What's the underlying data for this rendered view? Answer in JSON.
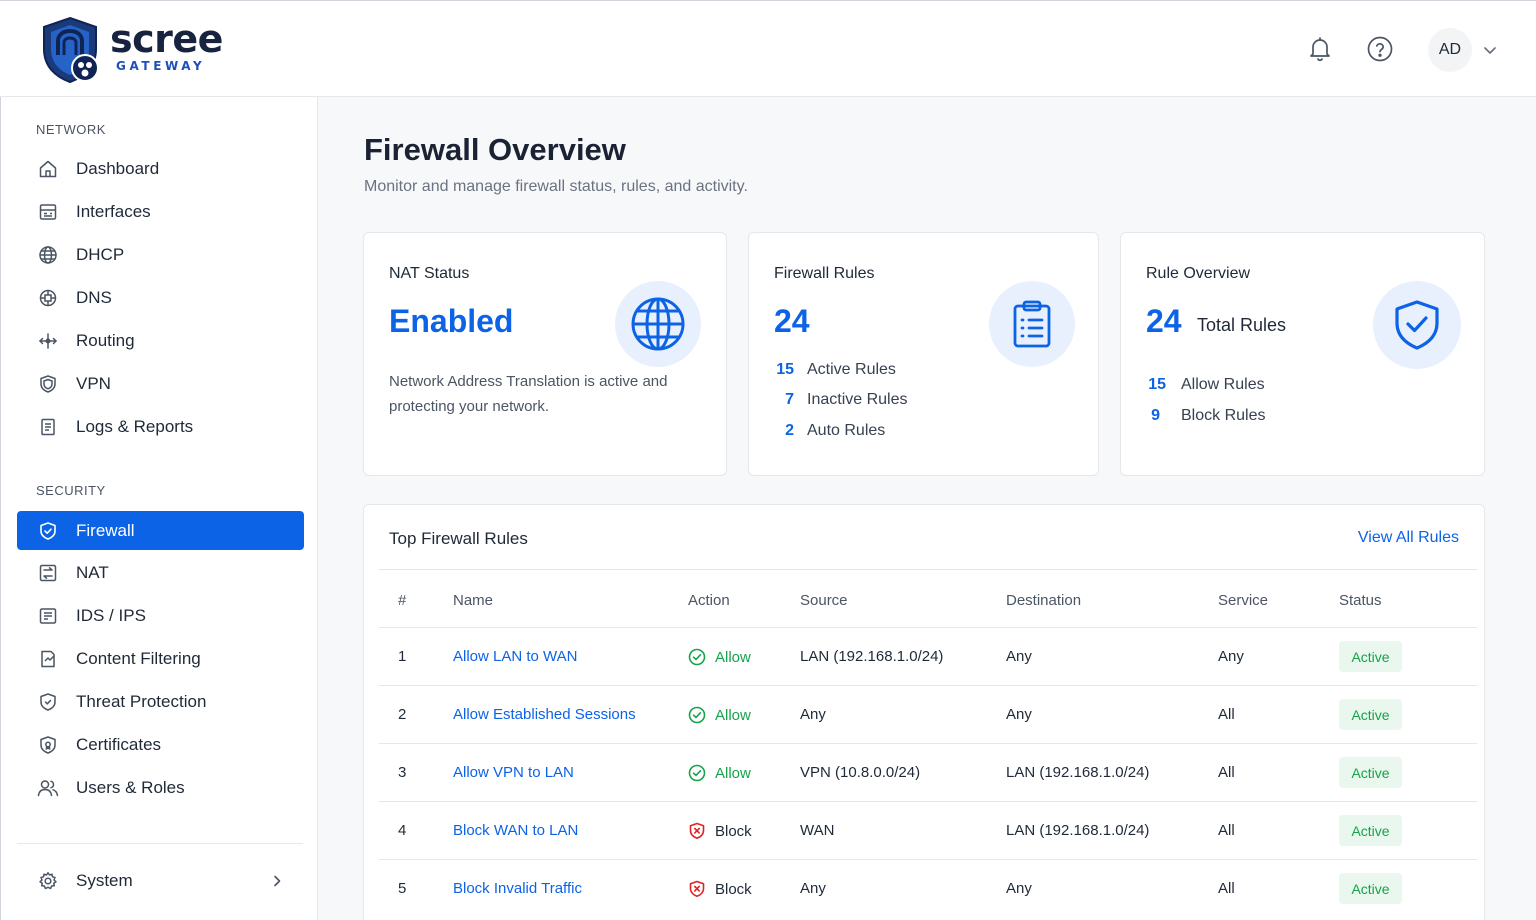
{
  "brand": {
    "name": "scree",
    "subtitle": "GATEWAY"
  },
  "header": {
    "avatar_initials": "AD",
    "icons": [
      "bell-icon",
      "help-icon",
      "chevron-down-icon"
    ]
  },
  "sidebar": {
    "network_heading": "NETWORK",
    "network_items": [
      {
        "label": "Dashboard",
        "icon": "home-icon"
      },
      {
        "label": "Interfaces",
        "icon": "interfaces-icon"
      },
      {
        "label": "DHCP",
        "icon": "globe-icon"
      },
      {
        "label": "DNS",
        "icon": "dns-icon"
      },
      {
        "label": "Routing",
        "icon": "routing-icon"
      },
      {
        "label": "VPN",
        "icon": "shield-icon"
      },
      {
        "label": "Logs & Reports",
        "icon": "document-icon"
      }
    ],
    "security_heading": "SECURITY",
    "security_items": [
      {
        "label": "Firewall",
        "icon": "shield-check-icon",
        "active": true
      },
      {
        "label": "NAT",
        "icon": "nat-icon"
      },
      {
        "label": "IDS / IPS",
        "icon": "ids-icon"
      },
      {
        "label": "Content Filtering",
        "icon": "filter-icon"
      },
      {
        "label": "Threat Protection",
        "icon": "shield-icon"
      },
      {
        "label": "Certificates",
        "icon": "certificate-icon"
      },
      {
        "label": "Users & Roles",
        "icon": "users-icon"
      }
    ],
    "system_label": "System"
  },
  "page": {
    "title": "Firewall Overview",
    "subtitle": "Monitor and manage firewall status, rules, and activity."
  },
  "cards": {
    "nat": {
      "title": "NAT Status",
      "value": "Enabled",
      "description": "Network Address Translation is active and protecting your network."
    },
    "rules": {
      "title": "Firewall Rules",
      "value": "24",
      "stats": [
        {
          "num": "15",
          "label": "Active Rules"
        },
        {
          "num": "7",
          "label": "Inactive Rules"
        },
        {
          "num": "2",
          "label": "Auto Rules"
        }
      ]
    },
    "overview": {
      "title": "Rule Overview",
      "value": "24",
      "value_label": "Total Rules",
      "stats": [
        {
          "num": "15",
          "label": "Allow Rules"
        },
        {
          "num": "9",
          "label": "Block Rules"
        }
      ]
    }
  },
  "table": {
    "title": "Top Firewall Rules",
    "view_all": "View All Rules",
    "columns": [
      "#",
      "Name",
      "Action",
      "Source",
      "Destination",
      "Service",
      "Status"
    ],
    "rows": [
      {
        "num": "1",
        "name": "Allow LAN to WAN",
        "action": "Allow",
        "source": "LAN (192.168.1.0/24)",
        "destination": "Any",
        "service": "Any",
        "status": "Active"
      },
      {
        "num": "2",
        "name": "Allow Established Sessions",
        "action": "Allow",
        "source": "Any",
        "destination": "Any",
        "service": "All",
        "status": "Active"
      },
      {
        "num": "3",
        "name": "Allow VPN to LAN",
        "action": "Allow",
        "source": "VPN (10.8.0.0/24)",
        "destination": "LAN (192.168.1.0/24)",
        "service": "All",
        "status": "Active"
      },
      {
        "num": "4",
        "name": "Block WAN to LAN",
        "action": "Block",
        "source": "WAN",
        "destination": "LAN (192.168.1.0/24)",
        "service": "All",
        "status": "Active"
      },
      {
        "num": "5",
        "name": "Block Invalid Traffic",
        "action": "Block",
        "source": "Any",
        "destination": "Any",
        "service": "All",
        "status": "Active"
      }
    ]
  },
  "colors": {
    "accent": "#0d63e6",
    "allow": "#16a34a",
    "block": "#dc2626",
    "badge_bg": "#e9f7ee"
  }
}
